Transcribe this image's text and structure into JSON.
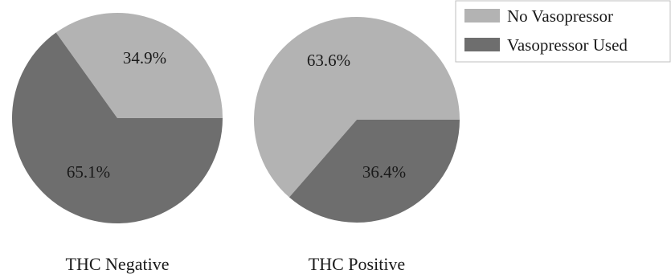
{
  "chart_data": {
    "type": "pie",
    "legend_position": "top-right",
    "colors": {
      "No Vasopressor": "#b3b3b3",
      "Vasopressor Used": "#6e6e6e"
    },
    "legend": [
      "No Vasopressor",
      "Vasopressor Used"
    ],
    "charts": [
      {
        "title": "THC Negative",
        "slices": [
          {
            "label": "No Vasopressor",
            "value": 34.9,
            "text": "34.9%"
          },
          {
            "label": "Vasopressor Used",
            "value": 65.1,
            "text": "65.1%"
          }
        ]
      },
      {
        "title": "THC Positive",
        "slices": [
          {
            "label": "No Vasopressor",
            "value": 63.6,
            "text": "63.6%"
          },
          {
            "label": "Vasopressor Used",
            "value": 36.4,
            "text": "36.4%"
          }
        ]
      }
    ]
  }
}
